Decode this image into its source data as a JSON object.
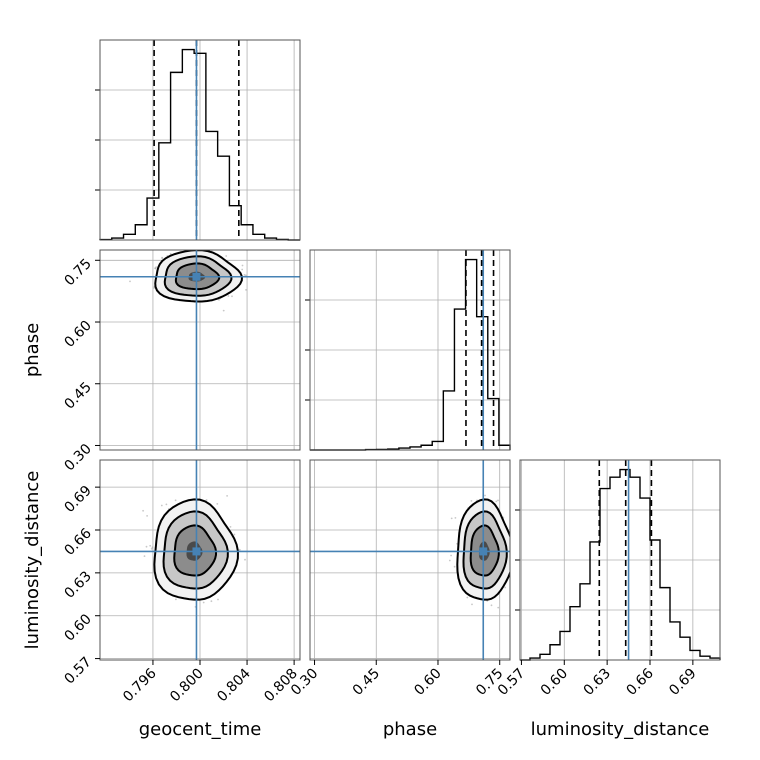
{
  "chart_data": {
    "type": "corner",
    "parameters": [
      "geocent_time",
      "phase",
      "luminosity_distance"
    ],
    "truths": {
      "geocent_time": 0.7997,
      "phase": 0.71,
      "luminosity_distance": 0.645
    },
    "truth_color": "#4682b4",
    "grid": true,
    "axes": {
      "geocent_time": {
        "label": "geocent_time",
        "range": [
          0.7915,
          0.8085
        ],
        "ticks": [
          0.796,
          0.8,
          0.804,
          0.808
        ],
        "tick_labels": [
          "0.796",
          "0.800",
          "0.804",
          "0.808"
        ]
      },
      "phase": {
        "label": "phase",
        "range": [
          0.289,
          0.775
        ],
        "ticks": [
          0.3,
          0.45,
          0.6,
          0.75
        ],
        "tick_labels": [
          "0.30",
          "0.45",
          "0.60",
          "0.75"
        ]
      },
      "luminosity_distance": {
        "label": "luminosity_distance",
        "range": [
          0.569,
          0.709
        ],
        "ticks": [
          0.57,
          0.6,
          0.63,
          0.66,
          0.69
        ],
        "tick_labels": [
          "0.57",
          "0.60",
          "0.63",
          "0.66",
          "0.69"
        ]
      }
    },
    "histograms": [
      {
        "parameter": "geocent_time",
        "bin_edges": [
          0.7915,
          0.7925,
          0.7935,
          0.7945,
          0.7955,
          0.7965,
          0.7975,
          0.7985,
          0.7995,
          0.8005,
          0.8015,
          0.8025,
          0.8035,
          0.8045,
          0.8055,
          0.8065,
          0.8075,
          0.8085
        ],
        "counts": [
          0.2,
          1.0,
          3.0,
          8.0,
          22.0,
          51.0,
          88.0,
          100.0,
          98.0,
          57.0,
          44.0,
          18.0,
          8.0,
          3.0,
          1.0,
          0.3,
          0.0
        ],
        "quantiles": [
          0.7961,
          0.7997,
          0.8033
        ]
      },
      {
        "parameter": "phase",
        "bin_edges": [
          0.289,
          0.316,
          0.343,
          0.37,
          0.397,
          0.424,
          0.451,
          0.478,
          0.505,
          0.532,
          0.559,
          0.586,
          0.613,
          0.64,
          0.667,
          0.694,
          0.721,
          0.748,
          0.775
        ],
        "counts": [
          0.0,
          0.0,
          0.0,
          0.0,
          0.0,
          0.2,
          0.3,
          0.5,
          1.0,
          1.6,
          2.5,
          4.5,
          31.0,
          74.0,
          100.0,
          70.0,
          27.0,
          2.5
        ],
        "quantiles": [
          0.668,
          0.706,
          0.735
        ]
      },
      {
        "parameter": "luminosity_distance",
        "bin_edges": [
          0.569,
          0.576,
          0.583,
          0.59,
          0.597,
          0.604,
          0.611,
          0.618,
          0.625,
          0.632,
          0.639,
          0.646,
          0.653,
          0.66,
          0.667,
          0.674,
          0.681,
          0.688,
          0.695,
          0.702,
          0.709
        ],
        "counts": [
          0.0,
          1.0,
          3.0,
          8.0,
          15.0,
          28.0,
          40.0,
          62.0,
          90.0,
          96.0,
          100.0,
          96.0,
          85.0,
          63.0,
          38.0,
          20.0,
          12.0,
          5.0,
          2.0,
          1.0
        ],
        "quantiles": [
          0.6245,
          0.643,
          0.661
        ]
      }
    ],
    "contours_2d": [
      {
        "x": "geocent_time",
        "y": "phase",
        "center": [
          0.7997,
          0.71
        ],
        "sigma": [
          0.0014,
          0.024
        ],
        "levels": [
          0.5,
          1.3,
          2.0,
          2.6
        ]
      },
      {
        "x": "geocent_time",
        "y": "luminosity_distance",
        "center": [
          0.7995,
          0.645
        ],
        "sigma": [
          0.00135,
          0.0135
        ],
        "levels": [
          0.5,
          1.3,
          2.0,
          2.6
        ]
      },
      {
        "x": "phase",
        "y": "luminosity_distance",
        "center": [
          0.712,
          0.645
        ],
        "sigma": [
          0.026,
          0.0135
        ],
        "levels": [
          0.5,
          1.3,
          2.0,
          2.6
        ]
      }
    ]
  }
}
